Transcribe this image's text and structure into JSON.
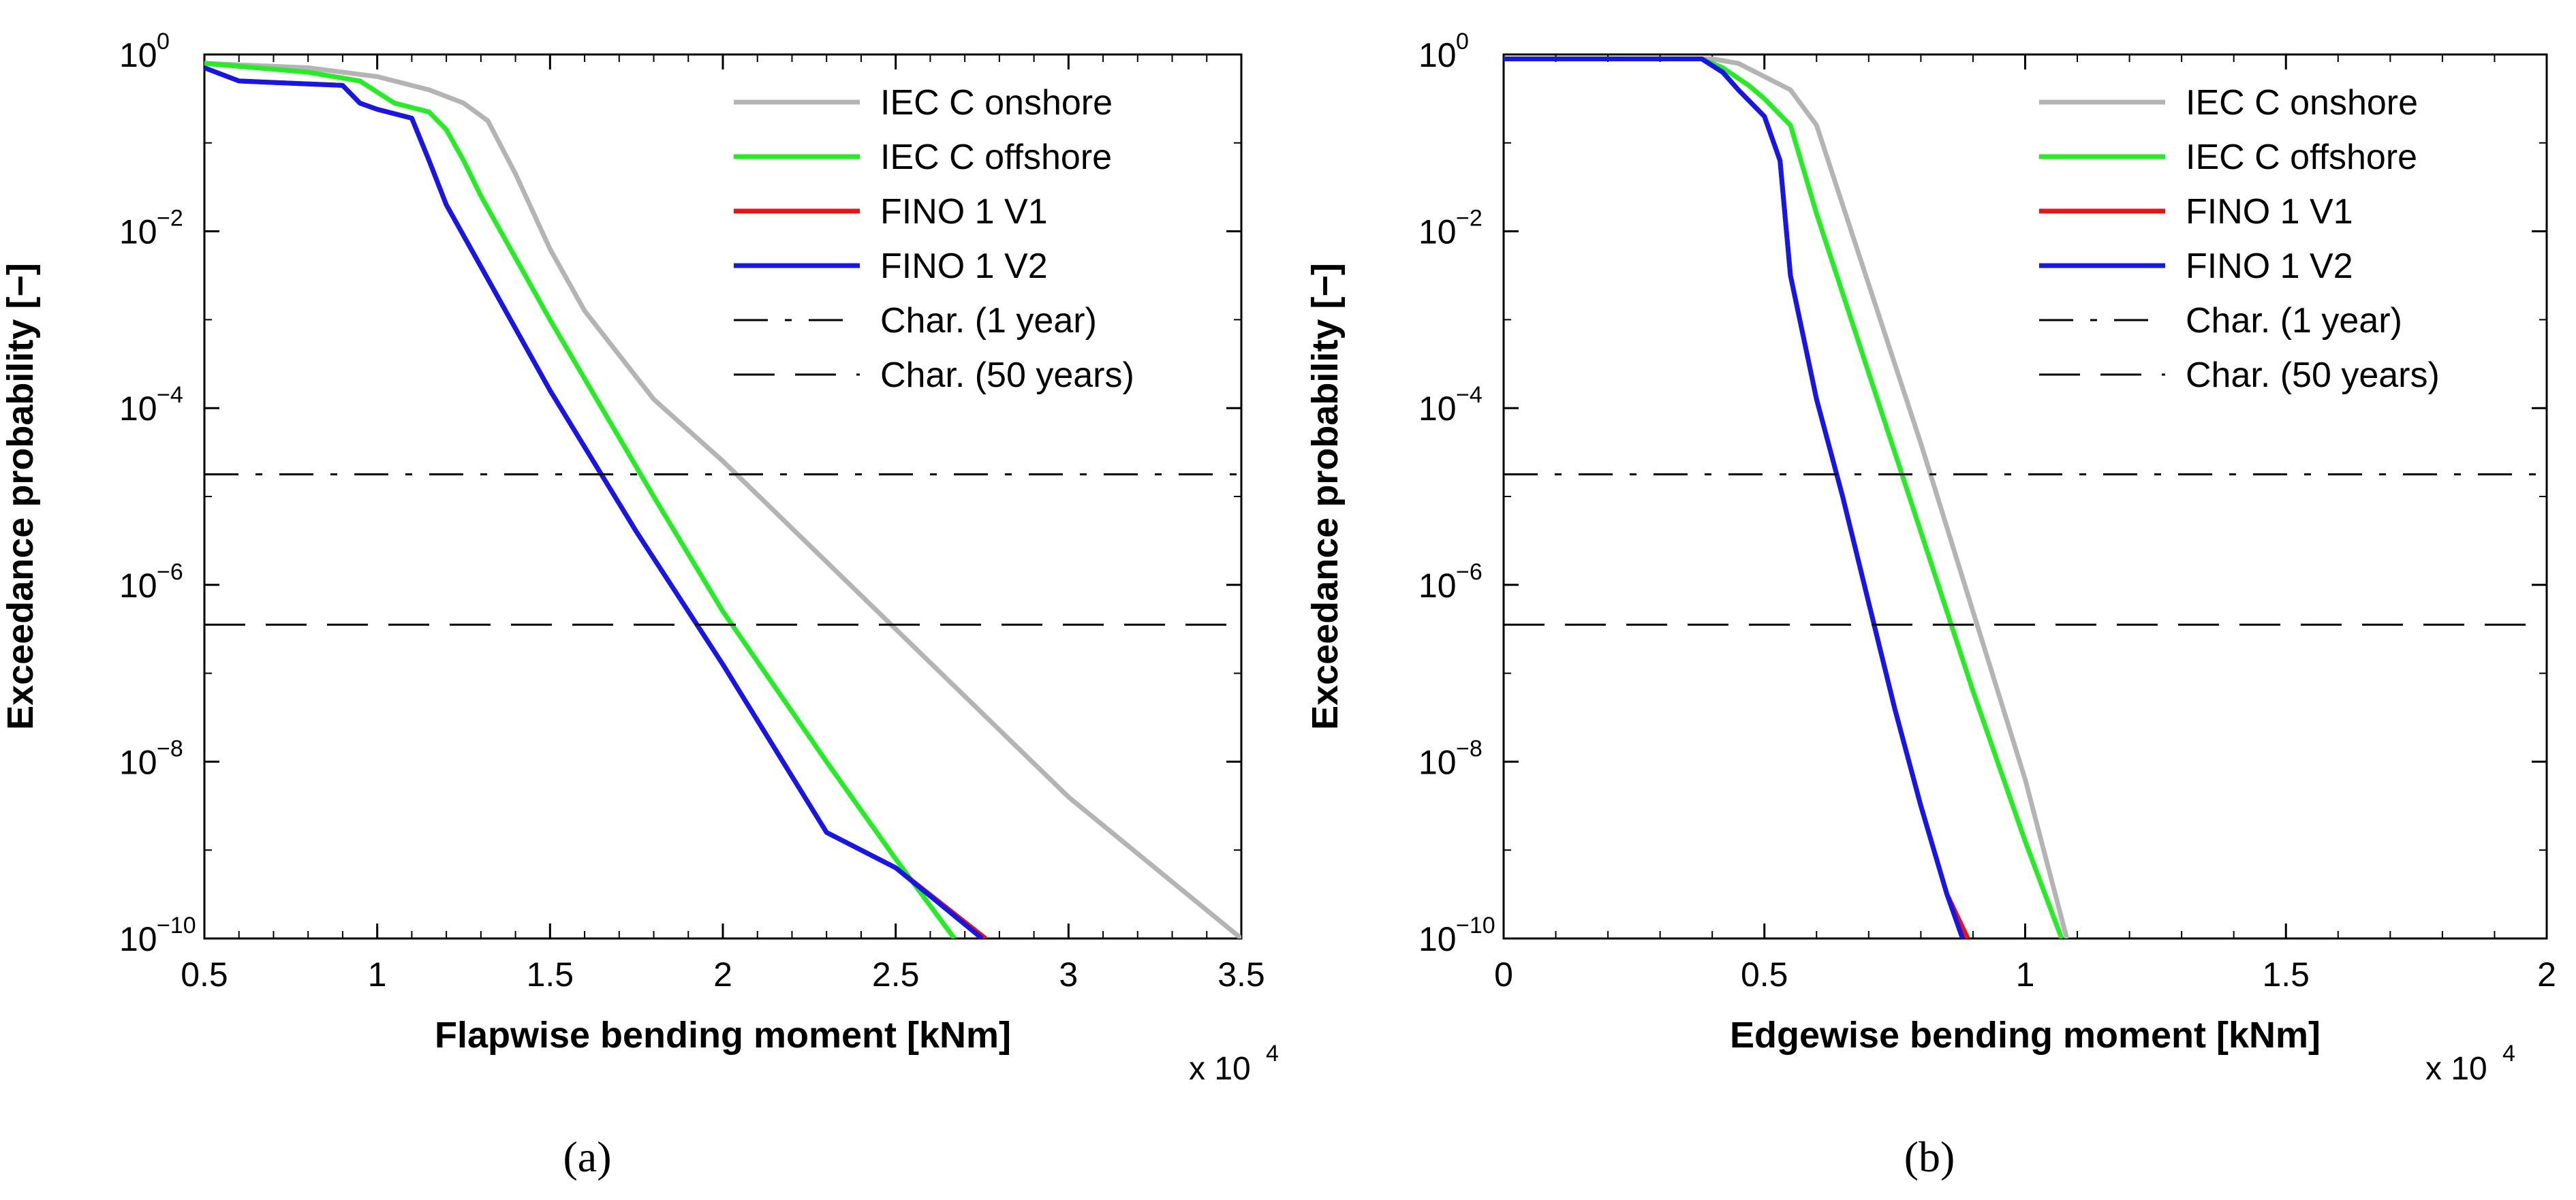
{
  "chart_data": [
    {
      "type": "line",
      "panel_label": "(a)",
      "xlabel": "Flapwise bending moment [kNm]",
      "ylabel": "Exceedance probability [−]",
      "x_multiplier": "x 10",
      "x_multiplier_exp": "4",
      "xlim": [
        0.5,
        3.5
      ],
      "ylim_exponent": [
        -10,
        0
      ],
      "yscale": "log",
      "xticks": [
        0.5,
        1,
        1.5,
        2,
        2.5,
        3,
        3.5
      ],
      "xtick_labels": [
        "0.5",
        "1",
        "1.5",
        "2",
        "2.5",
        "3",
        "3.5"
      ],
      "yticks_exponent": [
        0,
        -2,
        -4,
        -6,
        -8,
        -10
      ],
      "ytick_base": "10",
      "ytick_exp_labels": [
        "0",
        "−2",
        "−4",
        "−6",
        "−8",
        "−10"
      ],
      "legend_position": "top-right",
      "series": [
        {
          "name": "IEC C onshore",
          "color": "#b4b4b4",
          "style": "solid",
          "x": [
            0.5,
            0.8,
            1.0,
            1.15,
            1.25,
            1.32,
            1.4,
            1.5,
            1.6,
            1.8,
            2.0,
            2.5,
            3.0,
            3.5
          ],
          "log10_y": [
            -0.1,
            -0.15,
            -0.25,
            -0.4,
            -0.55,
            -0.75,
            -1.35,
            -2.2,
            -2.9,
            -3.9,
            -4.6,
            -6.5,
            -8.4,
            -10.0
          ]
        },
        {
          "name": "IEC C offshore",
          "color": "#22ee22",
          "style": "solid",
          "x": [
            0.5,
            0.8,
            0.95,
            1.05,
            1.15,
            1.2,
            1.25,
            1.3,
            1.5,
            1.8,
            2.0,
            2.3,
            2.5,
            2.67
          ],
          "log10_y": [
            -0.1,
            -0.2,
            -0.3,
            -0.55,
            -0.65,
            -0.85,
            -1.2,
            -1.6,
            -3.0,
            -5.0,
            -6.3,
            -8.0,
            -9.1,
            -10.0
          ]
        },
        {
          "name": "FINO 1 V1",
          "color": "#ee1111",
          "style": "solid",
          "x": [
            0.5,
            0.6,
            0.9,
            0.95,
            1.0,
            1.1,
            1.15,
            1.2,
            1.3,
            1.5,
            1.75,
            2.0,
            2.3,
            2.5,
            2.76
          ],
          "log10_y": [
            -0.15,
            -0.3,
            -0.35,
            -0.55,
            -0.62,
            -0.72,
            -1.2,
            -1.7,
            -2.4,
            -3.8,
            -5.4,
            -6.9,
            -8.8,
            -9.2,
            -10.0
          ]
        },
        {
          "name": "FINO 1 V2",
          "color": "#1515ee",
          "style": "solid",
          "x": [
            0.5,
            0.6,
            0.9,
            0.95,
            1.0,
            1.1,
            1.15,
            1.2,
            1.3,
            1.5,
            1.75,
            2.0,
            2.3,
            2.5,
            2.75
          ],
          "log10_y": [
            -0.15,
            -0.3,
            -0.35,
            -0.55,
            -0.62,
            -0.72,
            -1.2,
            -1.7,
            -2.4,
            -3.8,
            -5.4,
            -6.9,
            -8.8,
            -9.2,
            -10.0
          ]
        },
        {
          "name": "Char. (1 year)",
          "color": "#000000",
          "style": "dashdot",
          "hline_log10_y": -4.75
        },
        {
          "name": "Char. (50 years)",
          "color": "#000000",
          "style": "dashed",
          "hline_log10_y": -6.45
        }
      ]
    },
    {
      "type": "line",
      "panel_label": "(b)",
      "xlabel": "Edgewise bending moment [kNm]",
      "ylabel": "Exceedance probability [−]",
      "x_multiplier": "x 10",
      "x_multiplier_exp": "4",
      "xlim": [
        0,
        2
      ],
      "ylim_exponent": [
        -10,
        0
      ],
      "yscale": "log",
      "xticks": [
        0,
        0.5,
        1,
        1.5,
        2
      ],
      "xtick_labels": [
        "0",
        "0.5",
        "1",
        "1.5",
        "2"
      ],
      "yticks_exponent": [
        0,
        -2,
        -4,
        -6,
        -8,
        -10
      ],
      "ytick_base": "10",
      "ytick_exp_labels": [
        "0",
        "−2",
        "−4",
        "−6",
        "−8",
        "−10"
      ],
      "legend_position": "top-right",
      "series": [
        {
          "name": "IEC C onshore",
          "color": "#b4b4b4",
          "style": "solid",
          "x": [
            0,
            0.4,
            0.45,
            0.5,
            0.55,
            0.6,
            0.7,
            0.8,
            0.9,
            1.0,
            1.08
          ],
          "log10_y": [
            -0.05,
            -0.05,
            -0.1,
            -0.25,
            -0.4,
            -0.8,
            -2.6,
            -4.4,
            -6.3,
            -8.2,
            -10.0
          ]
        },
        {
          "name": "IEC C offshore",
          "color": "#22ee22",
          "style": "solid",
          "x": [
            0,
            0.38,
            0.42,
            0.47,
            0.5,
            0.55,
            0.6,
            0.7,
            0.8,
            0.9,
            1.0,
            1.07
          ],
          "log10_y": [
            -0.05,
            -0.05,
            -0.15,
            -0.35,
            -0.5,
            -0.8,
            -1.8,
            -3.6,
            -5.4,
            -7.2,
            -8.9,
            -10.0
          ]
        },
        {
          "name": "FINO 1 V1",
          "color": "#ee1111",
          "style": "solid",
          "x": [
            0,
            0.38,
            0.42,
            0.45,
            0.5,
            0.53,
            0.55,
            0.6,
            0.65,
            0.7,
            0.75,
            0.8,
            0.85,
            0.89
          ],
          "log10_y": [
            -0.05,
            -0.05,
            -0.2,
            -0.4,
            -0.7,
            -1.2,
            -2.5,
            -3.9,
            -5.0,
            -6.2,
            -7.4,
            -8.5,
            -9.5,
            -10.0
          ]
        },
        {
          "name": "FINO 1 V2",
          "color": "#1515ee",
          "style": "solid",
          "x": [
            0,
            0.38,
            0.42,
            0.45,
            0.5,
            0.53,
            0.55,
            0.6,
            0.65,
            0.7,
            0.75,
            0.8,
            0.85,
            0.88
          ],
          "log10_y": [
            -0.05,
            -0.05,
            -0.2,
            -0.4,
            -0.7,
            -1.2,
            -2.5,
            -3.9,
            -5.0,
            -6.2,
            -7.4,
            -8.5,
            -9.5,
            -10.0
          ]
        },
        {
          "name": "Char. (1 year)",
          "color": "#000000",
          "style": "dashdot",
          "hline_log10_y": -4.75
        },
        {
          "name": "Char. (50 years)",
          "color": "#000000",
          "style": "dashed",
          "hline_log10_y": -6.45
        }
      ]
    }
  ]
}
